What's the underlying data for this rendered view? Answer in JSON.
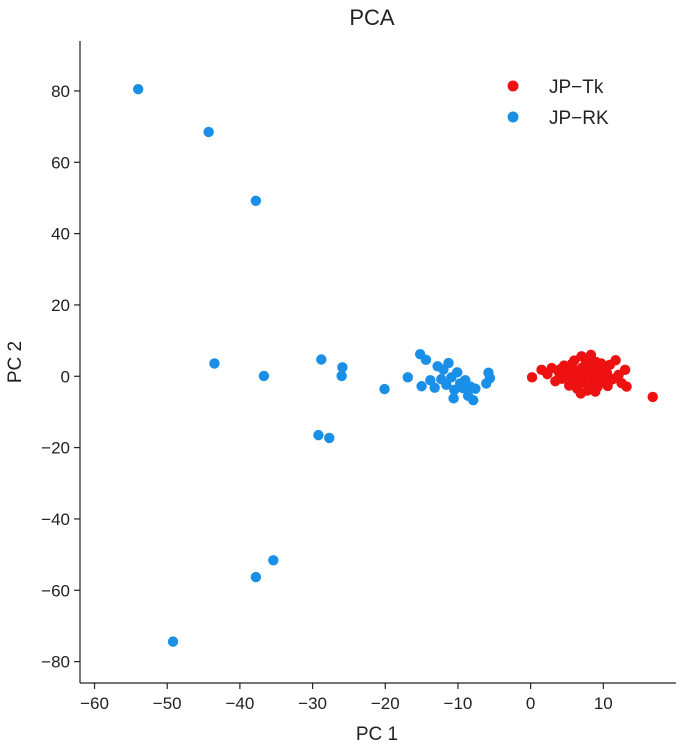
{
  "chart_data": {
    "type": "scatter",
    "title": "PCA",
    "xlabel": "PC 1",
    "ylabel": "PC 2",
    "xlim": [
      -62,
      20
    ],
    "ylim": [
      -86,
      94
    ],
    "xticks": [
      -60,
      -50,
      -40,
      -30,
      -20,
      -10,
      0,
      10
    ],
    "yticks": [
      80,
      60,
      40,
      20,
      0,
      -20,
      -40,
      -60,
      -80
    ],
    "xtick_labels": [
      "−60",
      "−50",
      "−40",
      "−30",
      "−20",
      "−10",
      "0",
      "10"
    ],
    "ytick_labels": [
      "80",
      "60",
      "40",
      "20",
      "0",
      "−20",
      "−40",
      "−60",
      "−80"
    ],
    "grid": false,
    "legend_position": "top-right",
    "series": [
      {
        "name": "JP−Tk",
        "color": "#ee1111",
        "points": [
          [
            0.2,
            -0.3
          ],
          [
            1.5,
            1.8
          ],
          [
            2.3,
            0.6
          ],
          [
            2.9,
            2.3
          ],
          [
            3.4,
            -1.4
          ],
          [
            3.9,
            1.1
          ],
          [
            4.3,
            -0.7
          ],
          [
            4.6,
            3.0
          ],
          [
            5.0,
            0.2
          ],
          [
            5.3,
            -2.6
          ],
          [
            5.5,
            2.2
          ],
          [
            5.8,
            -1.0
          ],
          [
            6.0,
            4.4
          ],
          [
            6.2,
            0.8
          ],
          [
            6.4,
            -3.5
          ],
          [
            6.6,
            1.6
          ],
          [
            6.8,
            -0.4
          ],
          [
            7.0,
            5.6
          ],
          [
            7.1,
            2.4
          ],
          [
            7.3,
            -1.8
          ],
          [
            7.5,
            0.5
          ],
          [
            7.6,
            3.7
          ],
          [
            7.8,
            -4.0
          ],
          [
            8.0,
            1.2
          ],
          [
            8.1,
            -2.2
          ],
          [
            8.3,
            6.0
          ],
          [
            8.5,
            0.0
          ],
          [
            8.6,
            2.8
          ],
          [
            8.8,
            -1.1
          ],
          [
            9.0,
            4.0
          ],
          [
            9.2,
            -3.0
          ],
          [
            9.4,
            1.5
          ],
          [
            9.6,
            -0.5
          ],
          [
            9.9,
            2.5
          ],
          [
            10.2,
            -1.6
          ],
          [
            10.5,
            0.9
          ],
          [
            10.9,
            3.2
          ],
          [
            11.3,
            -0.8
          ],
          [
            11.7,
            4.5
          ],
          [
            12.1,
            0.4
          ],
          [
            12.5,
            -1.9
          ],
          [
            13.0,
            1.8
          ],
          [
            13.2,
            -2.9
          ],
          [
            16.8,
            -5.8
          ],
          [
            6.9,
            -4.8
          ],
          [
            7.7,
            4.9
          ],
          [
            5.7,
            3.5
          ],
          [
            8.9,
            -4.3
          ],
          [
            4.1,
            2.0
          ],
          [
            9.7,
            3.6
          ],
          [
            6.3,
            -2.4
          ],
          [
            8.4,
            -3.6
          ],
          [
            7.2,
            1.0
          ],
          [
            10.6,
            -2.7
          ]
        ]
      },
      {
        "name": "JP−RK",
        "color": "#1a8fe8",
        "points": [
          [
            -54.0,
            80.5
          ],
          [
            -44.3,
            68.5
          ],
          [
            -37.8,
            49.2
          ],
          [
            -43.5,
            3.6
          ],
          [
            -36.7,
            0.1
          ],
          [
            -28.8,
            4.7
          ],
          [
            -25.9,
            2.5
          ],
          [
            -26.0,
            0.1
          ],
          [
            -29.2,
            -16.5
          ],
          [
            -27.7,
            -17.3
          ],
          [
            -20.1,
            -3.6
          ],
          [
            -16.9,
            -0.3
          ],
          [
            -15.2,
            6.2
          ],
          [
            -14.4,
            4.6
          ],
          [
            -15.0,
            -2.8
          ],
          [
            -13.8,
            -1.1
          ],
          [
            -13.2,
            -3.2
          ],
          [
            -12.8,
            2.8
          ],
          [
            -12.3,
            -0.8
          ],
          [
            -12.0,
            1.9
          ],
          [
            -11.6,
            -2.4
          ],
          [
            -11.3,
            3.7
          ],
          [
            -10.9,
            -0.3
          ],
          [
            -10.5,
            -3.8
          ],
          [
            -10.6,
            -6.2
          ],
          [
            -10.1,
            1.1
          ],
          [
            -9.7,
            -2.0
          ],
          [
            -9.3,
            -3.3
          ],
          [
            -9.0,
            -1.1
          ],
          [
            -8.6,
            -5.5
          ],
          [
            -8.3,
            -2.9
          ],
          [
            -7.9,
            -6.7
          ],
          [
            -7.6,
            -3.5
          ],
          [
            -6.1,
            -2.0
          ],
          [
            -5.8,
            1.0
          ],
          [
            -5.6,
            -0.5
          ],
          [
            -37.8,
            -56.3
          ],
          [
            -35.4,
            -51.6
          ],
          [
            -49.2,
            -74.4
          ]
        ]
      }
    ]
  }
}
